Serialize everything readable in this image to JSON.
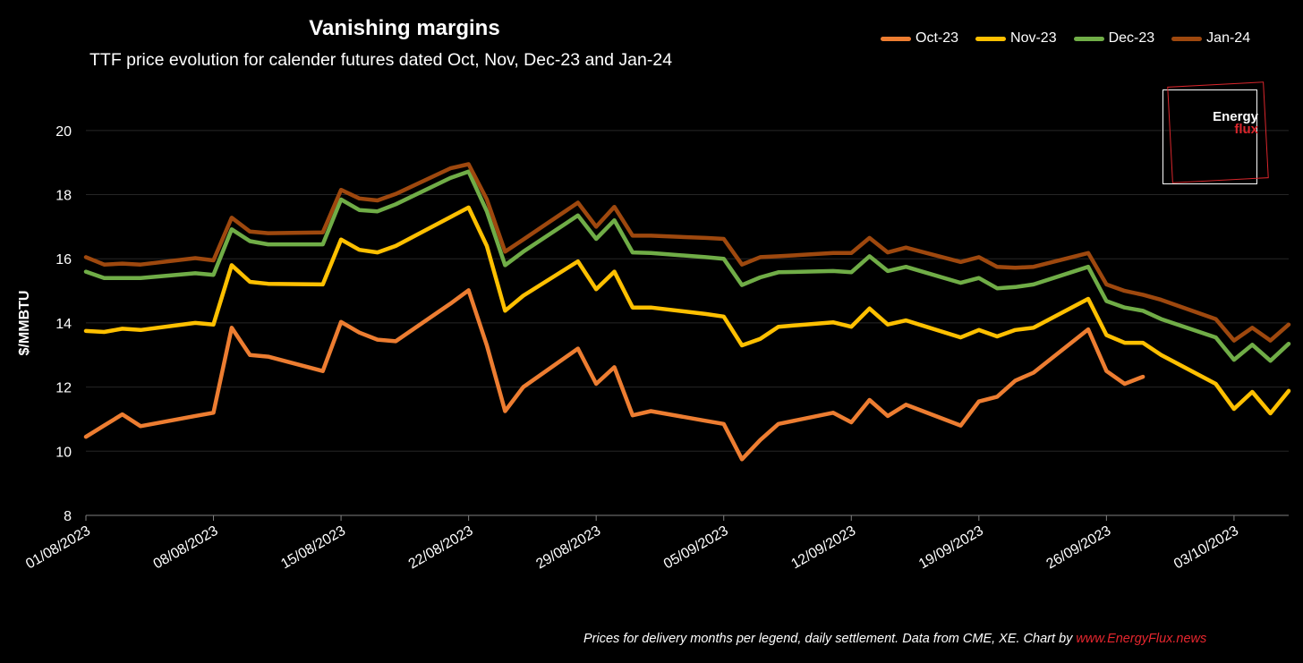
{
  "header": {
    "title": "Vanishing margins",
    "subtitle": "TTF price evolution for calender futures dated Oct, Nov, Dec-23 and Jan-24"
  },
  "footnote": {
    "text": "Prices for delivery months per legend, daily settlement. Data from CME, XE. Chart by ",
    "link": "www.EnergyFlux.news"
  },
  "logo": {
    "line1": "Energy",
    "line2": "flux"
  },
  "colors": {
    "background": "#000000",
    "grid": "#262626",
    "axis": "#7f7f7f",
    "brand_red": "#d9262c"
  },
  "chart_data": {
    "type": "line",
    "title": "Vanishing margins",
    "subtitle": "TTF price evolution for calender futures dated Oct, Nov, Dec-23 and Jan-24",
    "xlabel": "",
    "ylabel": "$/MMBTU",
    "ylim": [
      8,
      21
    ],
    "yticks": [
      8,
      10,
      12,
      14,
      16,
      18,
      20
    ],
    "xlim": [
      "2023-08-01",
      "2023-10-06"
    ],
    "xticks": [
      "01/08/2023",
      "08/08/2023",
      "15/08/2023",
      "22/08/2023",
      "29/08/2023",
      "05/09/2023",
      "12/09/2023",
      "19/09/2023",
      "26/09/2023",
      "03/10/2023"
    ],
    "grid": "horizontal",
    "legend_position": "top-right",
    "series": [
      {
        "name": "Oct-23",
        "color": "#ed7d31",
        "x": [
          "2023-08-01",
          "2023-08-02",
          "2023-08-03",
          "2023-08-04",
          "2023-08-07",
          "2023-08-08",
          "2023-08-09",
          "2023-08-10",
          "2023-08-11",
          "2023-08-14",
          "2023-08-15",
          "2023-08-16",
          "2023-08-17",
          "2023-08-18",
          "2023-08-21",
          "2023-08-22",
          "2023-08-23",
          "2023-08-24",
          "2023-08-25",
          "2023-08-28",
          "2023-08-29",
          "2023-08-30",
          "2023-08-31",
          "2023-09-01",
          "2023-09-04",
          "2023-09-05",
          "2023-09-06",
          "2023-09-07",
          "2023-09-08",
          "2023-09-11",
          "2023-09-12",
          "2023-09-13",
          "2023-09-14",
          "2023-09-15",
          "2023-09-18",
          "2023-09-19",
          "2023-09-20",
          "2023-09-21",
          "2023-09-22",
          "2023-09-25",
          "2023-09-26",
          "2023-09-27",
          "2023-09-28",
          "2023-09-29"
        ],
        "values": [
          10.45,
          10.8,
          11.15,
          10.78,
          11.1,
          11.2,
          13.85,
          13.0,
          12.95,
          12.5,
          14.03,
          13.7,
          13.48,
          13.43,
          14.6,
          15.02,
          13.3,
          11.25,
          12.0,
          13.2,
          12.1,
          12.62,
          11.12,
          11.25,
          10.95,
          10.85,
          9.75,
          10.35,
          10.85,
          11.2,
          10.9,
          11.6,
          11.1,
          11.45,
          10.8,
          11.55,
          11.7,
          12.2,
          12.45,
          13.8,
          12.5,
          12.1,
          12.32,
          null
        ]
      },
      {
        "name": "Nov-23",
        "color": "#ffc000",
        "x": [
          "2023-08-01",
          "2023-08-02",
          "2023-08-03",
          "2023-08-04",
          "2023-08-07",
          "2023-08-08",
          "2023-08-09",
          "2023-08-10",
          "2023-08-11",
          "2023-08-14",
          "2023-08-15",
          "2023-08-16",
          "2023-08-17",
          "2023-08-18",
          "2023-08-21",
          "2023-08-22",
          "2023-08-23",
          "2023-08-24",
          "2023-08-25",
          "2023-08-28",
          "2023-08-29",
          "2023-08-30",
          "2023-08-31",
          "2023-09-01",
          "2023-09-04",
          "2023-09-05",
          "2023-09-06",
          "2023-09-07",
          "2023-09-08",
          "2023-09-11",
          "2023-09-12",
          "2023-09-13",
          "2023-09-14",
          "2023-09-15",
          "2023-09-18",
          "2023-09-19",
          "2023-09-20",
          "2023-09-21",
          "2023-09-22",
          "2023-09-25",
          "2023-09-26",
          "2023-09-27",
          "2023-09-28",
          "2023-09-29",
          "2023-10-02",
          "2023-10-03",
          "2023-10-04",
          "2023-10-05",
          "2023-10-06"
        ],
        "values": [
          13.75,
          13.72,
          13.82,
          13.78,
          14.0,
          13.95,
          15.8,
          15.28,
          15.22,
          15.2,
          16.6,
          16.28,
          16.2,
          16.4,
          17.3,
          17.6,
          16.4,
          14.38,
          14.85,
          15.92,
          15.05,
          15.6,
          14.48,
          14.48,
          14.28,
          14.2,
          13.3,
          13.5,
          13.88,
          14.02,
          13.88,
          14.45,
          13.95,
          14.08,
          13.55,
          13.78,
          13.58,
          13.78,
          13.85,
          14.75,
          13.62,
          13.38,
          13.38,
          13.0,
          12.1,
          11.32,
          11.85,
          11.18,
          11.88
        ]
      },
      {
        "name": "Dec-23",
        "color": "#70ad47",
        "x": [
          "2023-08-01",
          "2023-08-02",
          "2023-08-03",
          "2023-08-04",
          "2023-08-07",
          "2023-08-08",
          "2023-08-09",
          "2023-08-10",
          "2023-08-11",
          "2023-08-14",
          "2023-08-15",
          "2023-08-16",
          "2023-08-17",
          "2023-08-18",
          "2023-08-21",
          "2023-08-22",
          "2023-08-23",
          "2023-08-24",
          "2023-08-25",
          "2023-08-28",
          "2023-08-29",
          "2023-08-30",
          "2023-08-31",
          "2023-09-01",
          "2023-09-04",
          "2023-09-05",
          "2023-09-06",
          "2023-09-07",
          "2023-09-08",
          "2023-09-11",
          "2023-09-12",
          "2023-09-13",
          "2023-09-14",
          "2023-09-15",
          "2023-09-18",
          "2023-09-19",
          "2023-09-20",
          "2023-09-21",
          "2023-09-22",
          "2023-09-25",
          "2023-09-26",
          "2023-09-27",
          "2023-09-28",
          "2023-09-29",
          "2023-10-02",
          "2023-10-03",
          "2023-10-04",
          "2023-10-05",
          "2023-10-06"
        ],
        "values": [
          15.6,
          15.4,
          15.4,
          15.4,
          15.55,
          15.5,
          16.92,
          16.55,
          16.45,
          16.45,
          17.85,
          17.52,
          17.48,
          17.7,
          18.52,
          18.72,
          17.48,
          15.8,
          16.22,
          17.35,
          16.62,
          17.2,
          16.2,
          16.18,
          16.05,
          16.0,
          15.18,
          15.42,
          15.58,
          15.62,
          15.58,
          16.08,
          15.62,
          15.75,
          15.25,
          15.4,
          15.08,
          15.12,
          15.2,
          15.75,
          14.68,
          14.48,
          14.38,
          14.12,
          13.55,
          12.85,
          13.32,
          12.82,
          13.35
        ]
      },
      {
        "name": "Jan-24",
        "color": "#9e480e",
        "x": [
          "2023-08-01",
          "2023-08-02",
          "2023-08-03",
          "2023-08-04",
          "2023-08-07",
          "2023-08-08",
          "2023-08-09",
          "2023-08-10",
          "2023-08-11",
          "2023-08-14",
          "2023-08-15",
          "2023-08-16",
          "2023-08-17",
          "2023-08-18",
          "2023-08-21",
          "2023-08-22",
          "2023-08-23",
          "2023-08-24",
          "2023-08-25",
          "2023-08-28",
          "2023-08-29",
          "2023-08-30",
          "2023-08-31",
          "2023-09-01",
          "2023-09-04",
          "2023-09-05",
          "2023-09-06",
          "2023-09-07",
          "2023-09-08",
          "2023-09-11",
          "2023-09-12",
          "2023-09-13",
          "2023-09-14",
          "2023-09-15",
          "2023-09-18",
          "2023-09-19",
          "2023-09-20",
          "2023-09-21",
          "2023-09-22",
          "2023-09-25",
          "2023-09-26",
          "2023-09-27",
          "2023-09-28",
          "2023-09-29",
          "2023-10-02",
          "2023-10-03",
          "2023-10-04",
          "2023-10-05",
          "2023-10-06"
        ],
        "values": [
          16.05,
          15.82,
          15.85,
          15.82,
          16.02,
          15.95,
          17.28,
          16.85,
          16.8,
          16.82,
          18.15,
          17.88,
          17.82,
          18.02,
          18.82,
          18.95,
          17.85,
          16.22,
          16.6,
          17.75,
          17.0,
          17.62,
          16.72,
          16.72,
          16.65,
          16.62,
          15.82,
          16.05,
          16.08,
          16.18,
          16.18,
          16.65,
          16.2,
          16.35,
          15.9,
          16.05,
          15.75,
          15.72,
          15.75,
          16.18,
          15.2,
          15.0,
          14.88,
          14.72,
          14.12,
          13.45,
          13.85,
          13.45,
          13.95
        ]
      }
    ]
  }
}
